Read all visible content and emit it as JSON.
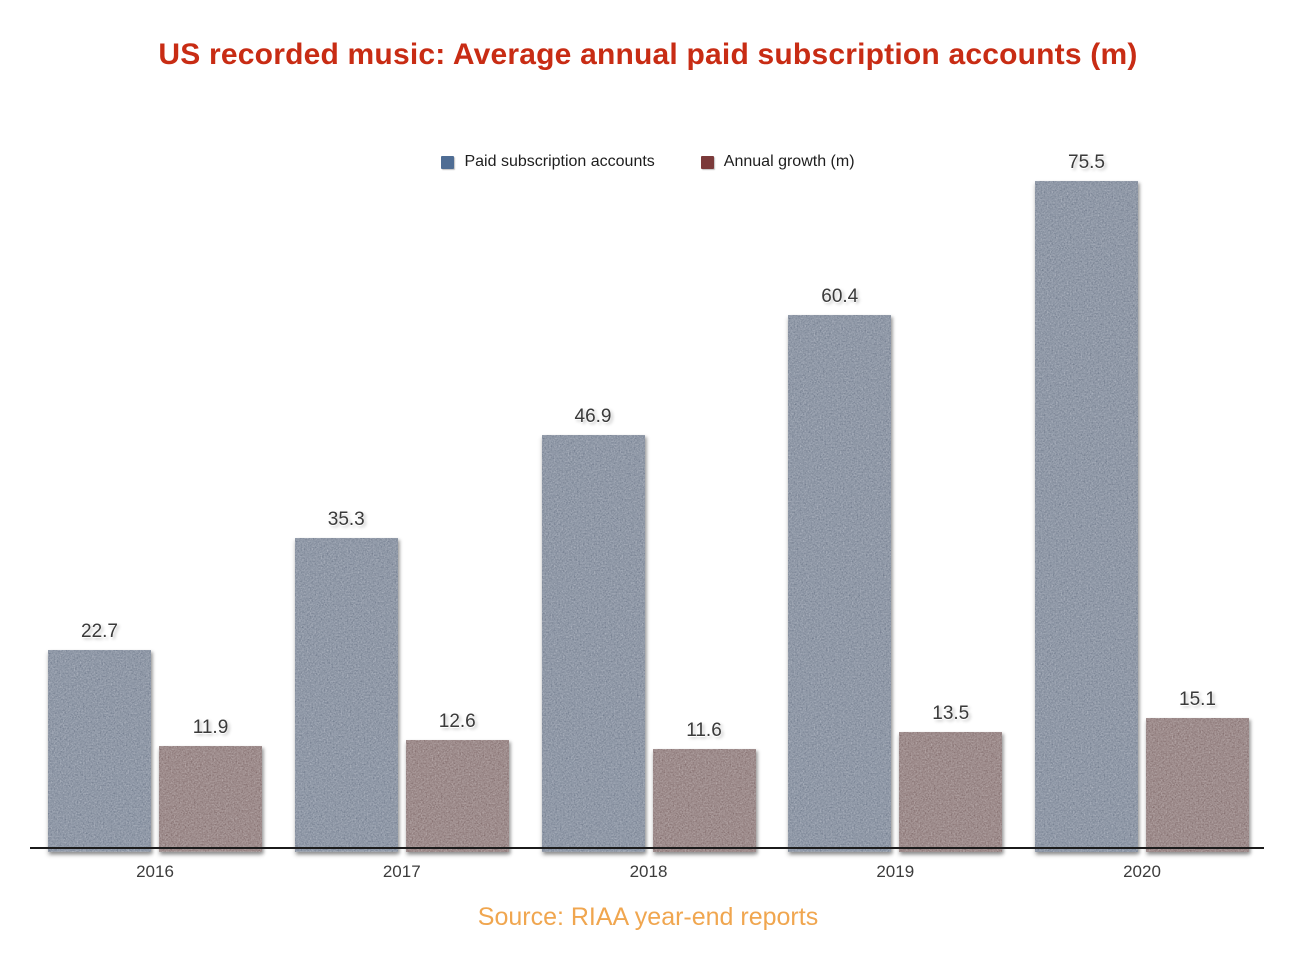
{
  "page": {
    "background": "#ffffff",
    "title_color": "#c82c14",
    "source_color": "#f0a64f",
    "axis_color": "#1b1b1b",
    "value_label_color": "#3a3a3a"
  },
  "chart_data": {
    "type": "bar",
    "title": "US recorded music: Average annual paid subscription accounts (m)",
    "source": "Source: RIAA year-end reports",
    "categories": [
      "2016",
      "2017",
      "2018",
      "2019",
      "2020"
    ],
    "series": [
      {
        "name": "Paid subscription accounts",
        "color": "#4f6d94",
        "values": [
          22.7,
          35.3,
          46.9,
          60.4,
          75.5
        ]
      },
      {
        "name": "Annual growth (m)",
        "color": "#7b3a3a",
        "values": [
          11.9,
          12.6,
          11.6,
          13.5,
          15.1
        ]
      }
    ],
    "xlabel": "",
    "ylabel": "",
    "ylim": [
      0,
      80
    ],
    "grid": false,
    "legend_position": "top-center",
    "value_labels": true
  }
}
